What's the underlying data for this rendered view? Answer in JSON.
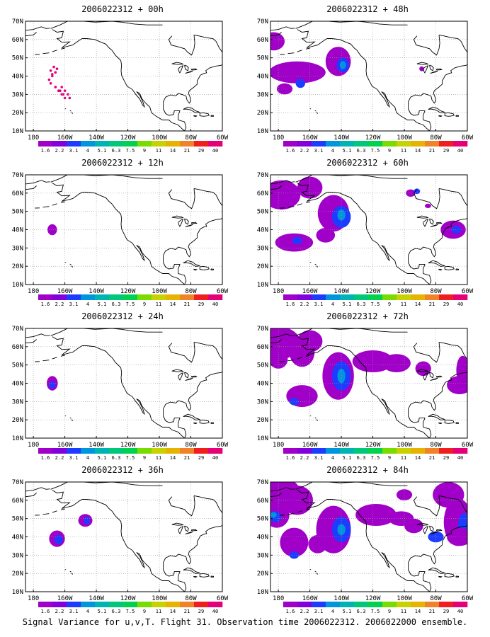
{
  "panels": [
    {
      "title": "2006022312 + 00h",
      "lead": "00h"
    },
    {
      "title": "2006022312 + 48h",
      "lead": "48h"
    },
    {
      "title": "2006022312 + 12h",
      "lead": "12h"
    },
    {
      "title": "2006022312 + 60h",
      "lead": "60h"
    },
    {
      "title": "2006022312 + 24h",
      "lead": "24h"
    },
    {
      "title": "2006022312 + 72h",
      "lead": "72h"
    },
    {
      "title": "2006022312 + 36h",
      "lead": "36h"
    },
    {
      "title": "2006022312 + 84h",
      "lead": "84h"
    }
  ],
  "map": {
    "lat_labels": [
      "70N",
      "60N",
      "50N",
      "40N",
      "30N",
      "20N",
      "10N"
    ],
    "lon_labels": [
      "180",
      "160W",
      "140W",
      "120W",
      "100W",
      "80W",
      "60W"
    ],
    "lat_range": [
      10,
      70
    ],
    "lon_range": [
      -185,
      -60
    ]
  },
  "colorbar": {
    "labels": [
      "1.6",
      "2.2",
      "3.1",
      "4",
      "5.1",
      "6.3",
      "7.5",
      "9",
      "11",
      "14",
      "21",
      "29",
      "40"
    ],
    "colors": [
      "#a000c8",
      "#8200dc",
      "#1e3cff",
      "#0096dc",
      "#00b4b4",
      "#00c878",
      "#00d250",
      "#78dc00",
      "#c8d200",
      "#e6b400",
      "#f08228",
      "#f01e1e",
      "#e60078"
    ]
  },
  "footer": "Signal Variance for u,v,T. Flight 31. Observation time 2006022312. 2006022000 ensemble."
}
